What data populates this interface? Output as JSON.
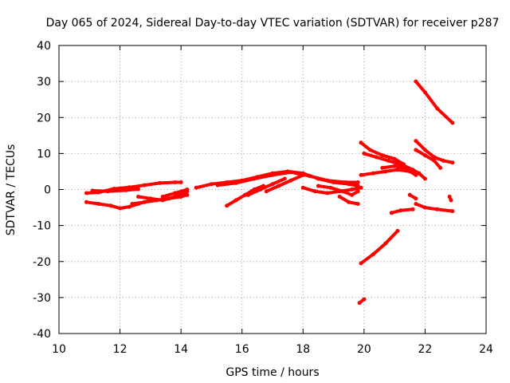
{
  "chart_data": {
    "type": "scatter",
    "title": "Day 065 of 2024, Sidereal Day-to-day VTEC variation (SDTVAR) for receiver p287",
    "xlabel": "GPS time / hours",
    "ylabel": "SDTVAR / TECUs",
    "xlim": [
      10,
      24
    ],
    "ylim": [
      -40,
      40
    ],
    "xticks": [
      10,
      12,
      14,
      16,
      18,
      20,
      22,
      24
    ],
    "yticks": [
      -40,
      -30,
      -20,
      -10,
      0,
      10,
      20,
      30,
      40
    ],
    "grid": true,
    "series_color": "#ff0000",
    "tracks": [
      {
        "x": [
          10.9,
          11.3,
          11.8,
          12.3,
          12.8,
          13.3,
          13.8,
          14.0
        ],
        "y": [
          -1.0,
          -0.8,
          0.2,
          0.6,
          1.2,
          1.8,
          2.0,
          2.0
        ]
      },
      {
        "x": [
          11.1,
          11.6,
          12.2,
          12.6
        ],
        "y": [
          -0.3,
          -0.5,
          -0.2,
          0.1
        ]
      },
      {
        "x": [
          10.9,
          11.3,
          11.7,
          12.0,
          12.3,
          12.6,
          13.0
        ],
        "y": [
          -3.5,
          -4.0,
          -4.5,
          -5.2,
          -4.8,
          -4.0,
          -3.0
        ]
      },
      {
        "x": [
          12.4,
          12.8,
          13.2,
          13.6,
          14.0,
          14.2
        ],
        "y": [
          -4.0,
          -3.5,
          -3.0,
          -2.5,
          -2.0,
          -1.5
        ]
      },
      {
        "x": [
          12.6,
          13.0,
          13.4,
          13.8,
          14.2
        ],
        "y": [
          -2.0,
          -2.5,
          -3.0,
          -2.0,
          -0.5
        ]
      },
      {
        "x": [
          13.4,
          13.8,
          14.2
        ],
        "y": [
          -2.0,
          -1.0,
          0.0
        ]
      },
      {
        "x": [
          14.5,
          15.0,
          15.5,
          16.0,
          16.5,
          17.0,
          17.5,
          18.0,
          18.5,
          19.0,
          19.5,
          19.8
        ],
        "y": [
          0.5,
          1.5,
          2.0,
          2.5,
          3.5,
          4.5,
          5.0,
          4.5,
          3.0,
          2.0,
          1.5,
          1.0
        ]
      },
      {
        "x": [
          15.2,
          15.8,
          16.4,
          17.0,
          17.6,
          18.2,
          18.8,
          19.4,
          19.8
        ],
        "y": [
          1.2,
          1.8,
          3.0,
          4.0,
          4.8,
          3.8,
          2.5,
          2.0,
          2.0
        ]
      },
      {
        "x": [
          15.5,
          15.8,
          16.1,
          16.4,
          16.7
        ],
        "y": [
          -4.5,
          -3.0,
          -1.5,
          0.0,
          1.0
        ]
      },
      {
        "x": [
          16.2,
          16.6,
          17.0,
          17.4
        ],
        "y": [
          -1.5,
          0.0,
          1.5,
          3.0
        ]
      },
      {
        "x": [
          16.8,
          17.2,
          17.6,
          18.0
        ],
        "y": [
          -0.5,
          1.0,
          2.5,
          4.0
        ]
      },
      {
        "x": [
          18.0,
          18.4,
          18.8,
          19.2,
          19.6,
          19.9
        ],
        "y": [
          0.5,
          -0.5,
          -1.0,
          -0.5,
          0.0,
          0.5
        ]
      },
      {
        "x": [
          18.5,
          18.9,
          19.3,
          19.6,
          19.8
        ],
        "y": [
          1.0,
          0.5,
          -0.5,
          -1.5,
          -0.5
        ]
      },
      {
        "x": [
          19.2,
          19.5,
          19.8
        ],
        "y": [
          -2.0,
          -3.5,
          -4.0
        ]
      },
      {
        "x": [
          19.9,
          20.2,
          20.6,
          21.0,
          21.3
        ],
        "y": [
          13.0,
          11.0,
          9.5,
          8.5,
          7.0
        ]
      },
      {
        "x": [
          20.0,
          20.4,
          20.8,
          21.2,
          21.6,
          21.8
        ],
        "y": [
          10.0,
          9.0,
          8.0,
          7.0,
          5.5,
          4.5
        ]
      },
      {
        "x": [
          19.9,
          20.3,
          20.7,
          21.1,
          21.5,
          21.7
        ],
        "y": [
          4.0,
          4.5,
          5.0,
          5.5,
          5.0,
          4.0
        ]
      },
      {
        "x": [
          20.6,
          21.0,
          21.4,
          21.8,
          22.0
        ],
        "y": [
          6.0,
          6.5,
          6.0,
          4.5,
          3.0
        ]
      },
      {
        "x": [
          19.9,
          20.3,
          20.7,
          21.1
        ],
        "y": [
          -20.5,
          -18.0,
          -15.0,
          -11.5
        ]
      },
      {
        "x": [
          19.85,
          20.0
        ],
        "y": [
          -31.5,
          -30.5
        ]
      },
      {
        "x": [
          20.9,
          21.2,
          21.6
        ],
        "y": [
          -6.5,
          -5.8,
          -5.5
        ]
      },
      {
        "x": [
          21.5,
          21.7
        ],
        "y": [
          -1.5,
          -2.5
        ]
      },
      {
        "x": [
          21.7,
          22.0,
          22.4,
          22.9
        ],
        "y": [
          -4.0,
          -5.0,
          -5.5,
          -6.0
        ]
      },
      {
        "x": [
          21.7,
          22.0,
          22.4,
          22.9
        ],
        "y": [
          30.0,
          27.0,
          22.5,
          18.5
        ]
      },
      {
        "x": [
          21.7,
          22.0,
          22.3,
          22.6,
          22.9
        ],
        "y": [
          13.5,
          11.0,
          9.0,
          8.0,
          7.5
        ]
      },
      {
        "x": [
          21.7,
          22.0,
          22.3,
          22.5
        ],
        "y": [
          11.0,
          9.5,
          8.0,
          6.0
        ]
      },
      {
        "x": [
          22.8,
          22.85
        ],
        "y": [
          -2.0,
          -3.0
        ]
      }
    ]
  }
}
